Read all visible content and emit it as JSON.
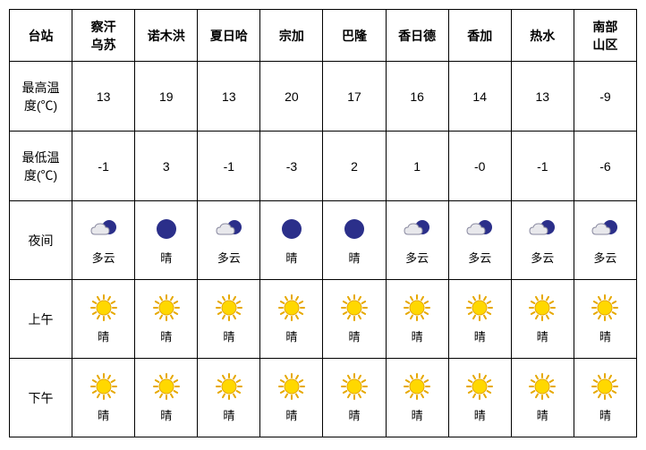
{
  "headers": {
    "row_label": "台站",
    "stations": [
      "察汗\n乌苏",
      "诺木洪",
      "夏日哈",
      "宗加",
      "巴隆",
      "香日德",
      "香加",
      "热水",
      "南部\n山区"
    ]
  },
  "row_labels": {
    "high_temp": "最高温\n度(℃)",
    "low_temp": "最低温\n度(℃)",
    "night": "夜间",
    "morning": "上午",
    "afternoon": "下午"
  },
  "high_temps": [
    "13",
    "19",
    "13",
    "20",
    "17",
    "16",
    "14",
    "13",
    "-9"
  ],
  "low_temps": [
    "-1",
    "3",
    "-1",
    "-3",
    "2",
    "1",
    "-0",
    "-1",
    "-6"
  ],
  "night": [
    {
      "icon": "cloud-moon",
      "label": "多云"
    },
    {
      "icon": "moon",
      "label": "晴"
    },
    {
      "icon": "cloud-moon",
      "label": "多云"
    },
    {
      "icon": "moon",
      "label": "晴"
    },
    {
      "icon": "moon",
      "label": "晴"
    },
    {
      "icon": "cloud-moon",
      "label": "多云"
    },
    {
      "icon": "cloud-moon",
      "label": "多云"
    },
    {
      "icon": "cloud-moon",
      "label": "多云"
    },
    {
      "icon": "cloud-moon",
      "label": "多云"
    }
  ],
  "morning": [
    {
      "icon": "sun",
      "label": "晴"
    },
    {
      "icon": "sun",
      "label": "晴"
    },
    {
      "icon": "sun",
      "label": "晴"
    },
    {
      "icon": "sun",
      "label": "晴"
    },
    {
      "icon": "sun",
      "label": "晴"
    },
    {
      "icon": "sun",
      "label": "晴"
    },
    {
      "icon": "sun",
      "label": "晴"
    },
    {
      "icon": "sun",
      "label": "晴"
    },
    {
      "icon": "sun",
      "label": "晴"
    }
  ],
  "afternoon": [
    {
      "icon": "sun",
      "label": "晴"
    },
    {
      "icon": "sun",
      "label": "晴"
    },
    {
      "icon": "sun",
      "label": "晴"
    },
    {
      "icon": "sun",
      "label": "晴"
    },
    {
      "icon": "sun",
      "label": "晴"
    },
    {
      "icon": "sun",
      "label": "晴"
    },
    {
      "icon": "sun",
      "label": "晴"
    },
    {
      "icon": "sun",
      "label": "晴"
    },
    {
      "icon": "sun",
      "label": "晴"
    }
  ],
  "colors": {
    "sun_fill": "#ffd800",
    "sun_stroke": "#e6a800",
    "moon_light": "#fff44a",
    "moon_dark": "#2b2f8a",
    "cloud_fill": "#e8e8ec",
    "cloud_stroke": "#8a8aa0"
  }
}
